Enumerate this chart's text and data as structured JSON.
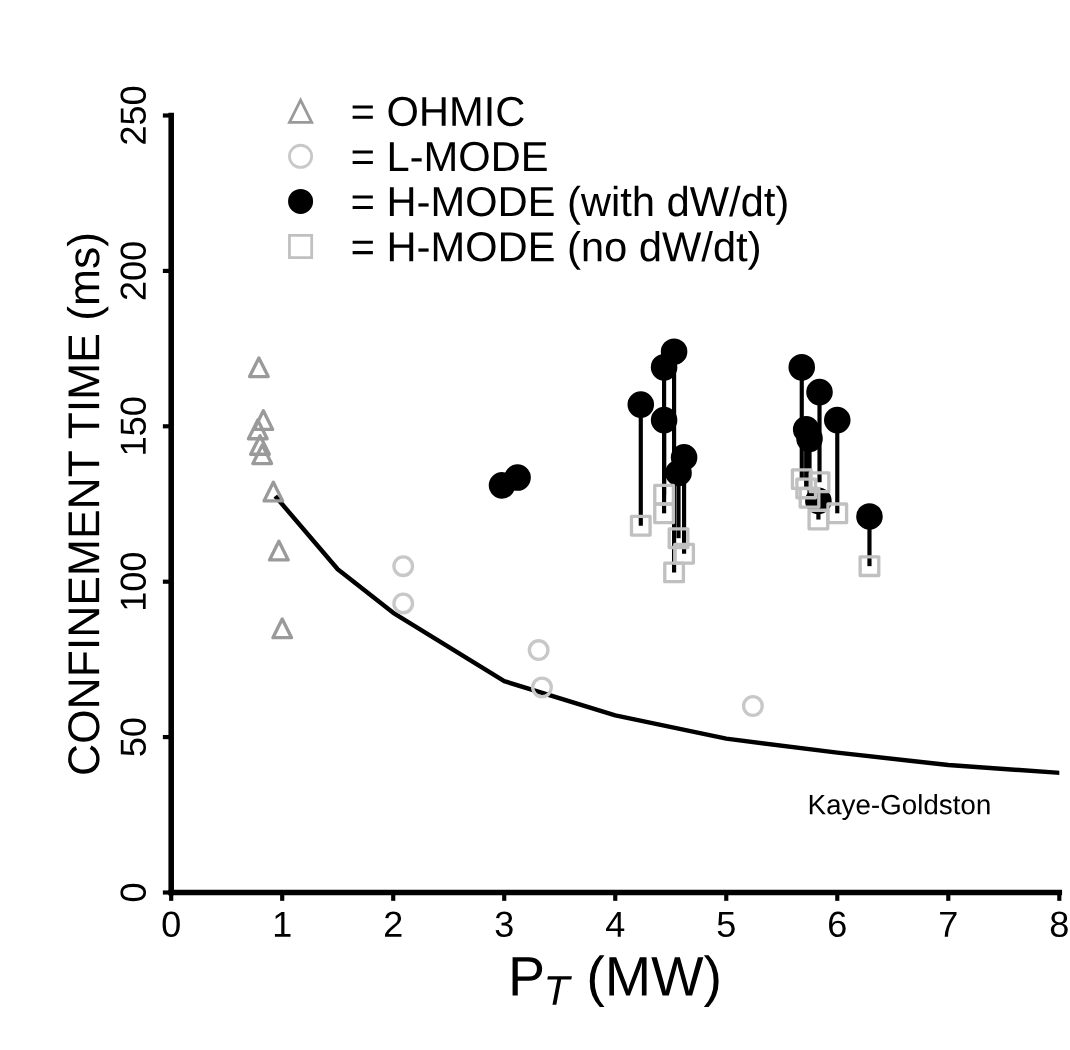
{
  "chart_data": {
    "type": "scatter",
    "xlabel": "P$_{T}$ (MW)",
    "ylabel": "CONFINEMENT TIME (ms)",
    "xlim": [
      0,
      8
    ],
    "ylim": [
      0,
      250
    ],
    "xticks": [
      0,
      1,
      2,
      3,
      4,
      5,
      6,
      7,
      8
    ],
    "yticks": [
      0,
      50,
      100,
      150,
      200,
      250
    ],
    "grid": false,
    "legend": "top left",
    "series": [
      {
        "name": "= OHMIC",
        "marker": "triangle",
        "color": "#9a9a9a",
        "x": [
          0.79,
          0.83,
          0.78,
          0.8,
          0.82,
          0.92,
          0.97,
          1.0
        ],
        "values": [
          169,
          152,
          149,
          144,
          141,
          129,
          110,
          85
        ]
      },
      {
        "name": "= L-MODE",
        "marker": "circle",
        "color": "#c8c8c8",
        "x": [
          2.09,
          2.09,
          3.31,
          3.34,
          5.24
        ],
        "values": [
          105,
          93,
          78,
          66,
          60
        ]
      },
      {
        "name": "= H-MODE (with dW/dt)",
        "marker": "circle",
        "color": "#000000",
        "x": [
          4.23,
          4.44,
          4.53,
          4.44,
          4.62,
          4.57,
          5.68,
          5.84,
          6.0,
          5.72,
          5.75,
          5.83,
          6.29,
          2.98,
          3.12
        ],
        "values": [
          157,
          169,
          174,
          152,
          140,
          135,
          169,
          161,
          152,
          149,
          146,
          126,
          121,
          131,
          133.5
        ],
        "errors": [
          [
            118,
            157
          ],
          [
            128,
            169
          ],
          [
            103,
            174
          ],
          [
            122,
            152
          ],
          [
            109,
            140
          ],
          [
            114,
            135
          ],
          [
            133,
            169
          ],
          [
            132,
            161
          ],
          [
            122,
            152
          ],
          [
            130,
            149
          ],
          [
            127,
            146
          ],
          [
            120,
            126
          ],
          [
            105,
            121
          ],
          null,
          null
        ]
      },
      {
        "name": "= H-MODE (no dW/dt)",
        "marker": "square",
        "color": "#c0c0c0",
        "x": [
          4.23,
          4.44,
          4.53,
          4.44,
          4.62,
          4.57,
          5.68,
          5.84,
          6.0,
          5.72,
          5.75,
          5.83,
          6.29
        ],
        "values": [
          118,
          128,
          103,
          122,
          109,
          114,
          133,
          132,
          122,
          130,
          127,
          120,
          105
        ]
      },
      {
        "type": "line",
        "marker": "none",
        "line_style": "solid",
        "color": "#000000",
        "x": [
          0.95,
          1.5,
          2,
          3,
          4,
          5,
          6,
          7,
          8
        ],
        "values": [
          127,
          104,
          90,
          68,
          57,
          49.5,
          45,
          41,
          38.5
        ]
      }
    ],
    "annotations": [
      "Kaye-Goldston"
    ]
  }
}
